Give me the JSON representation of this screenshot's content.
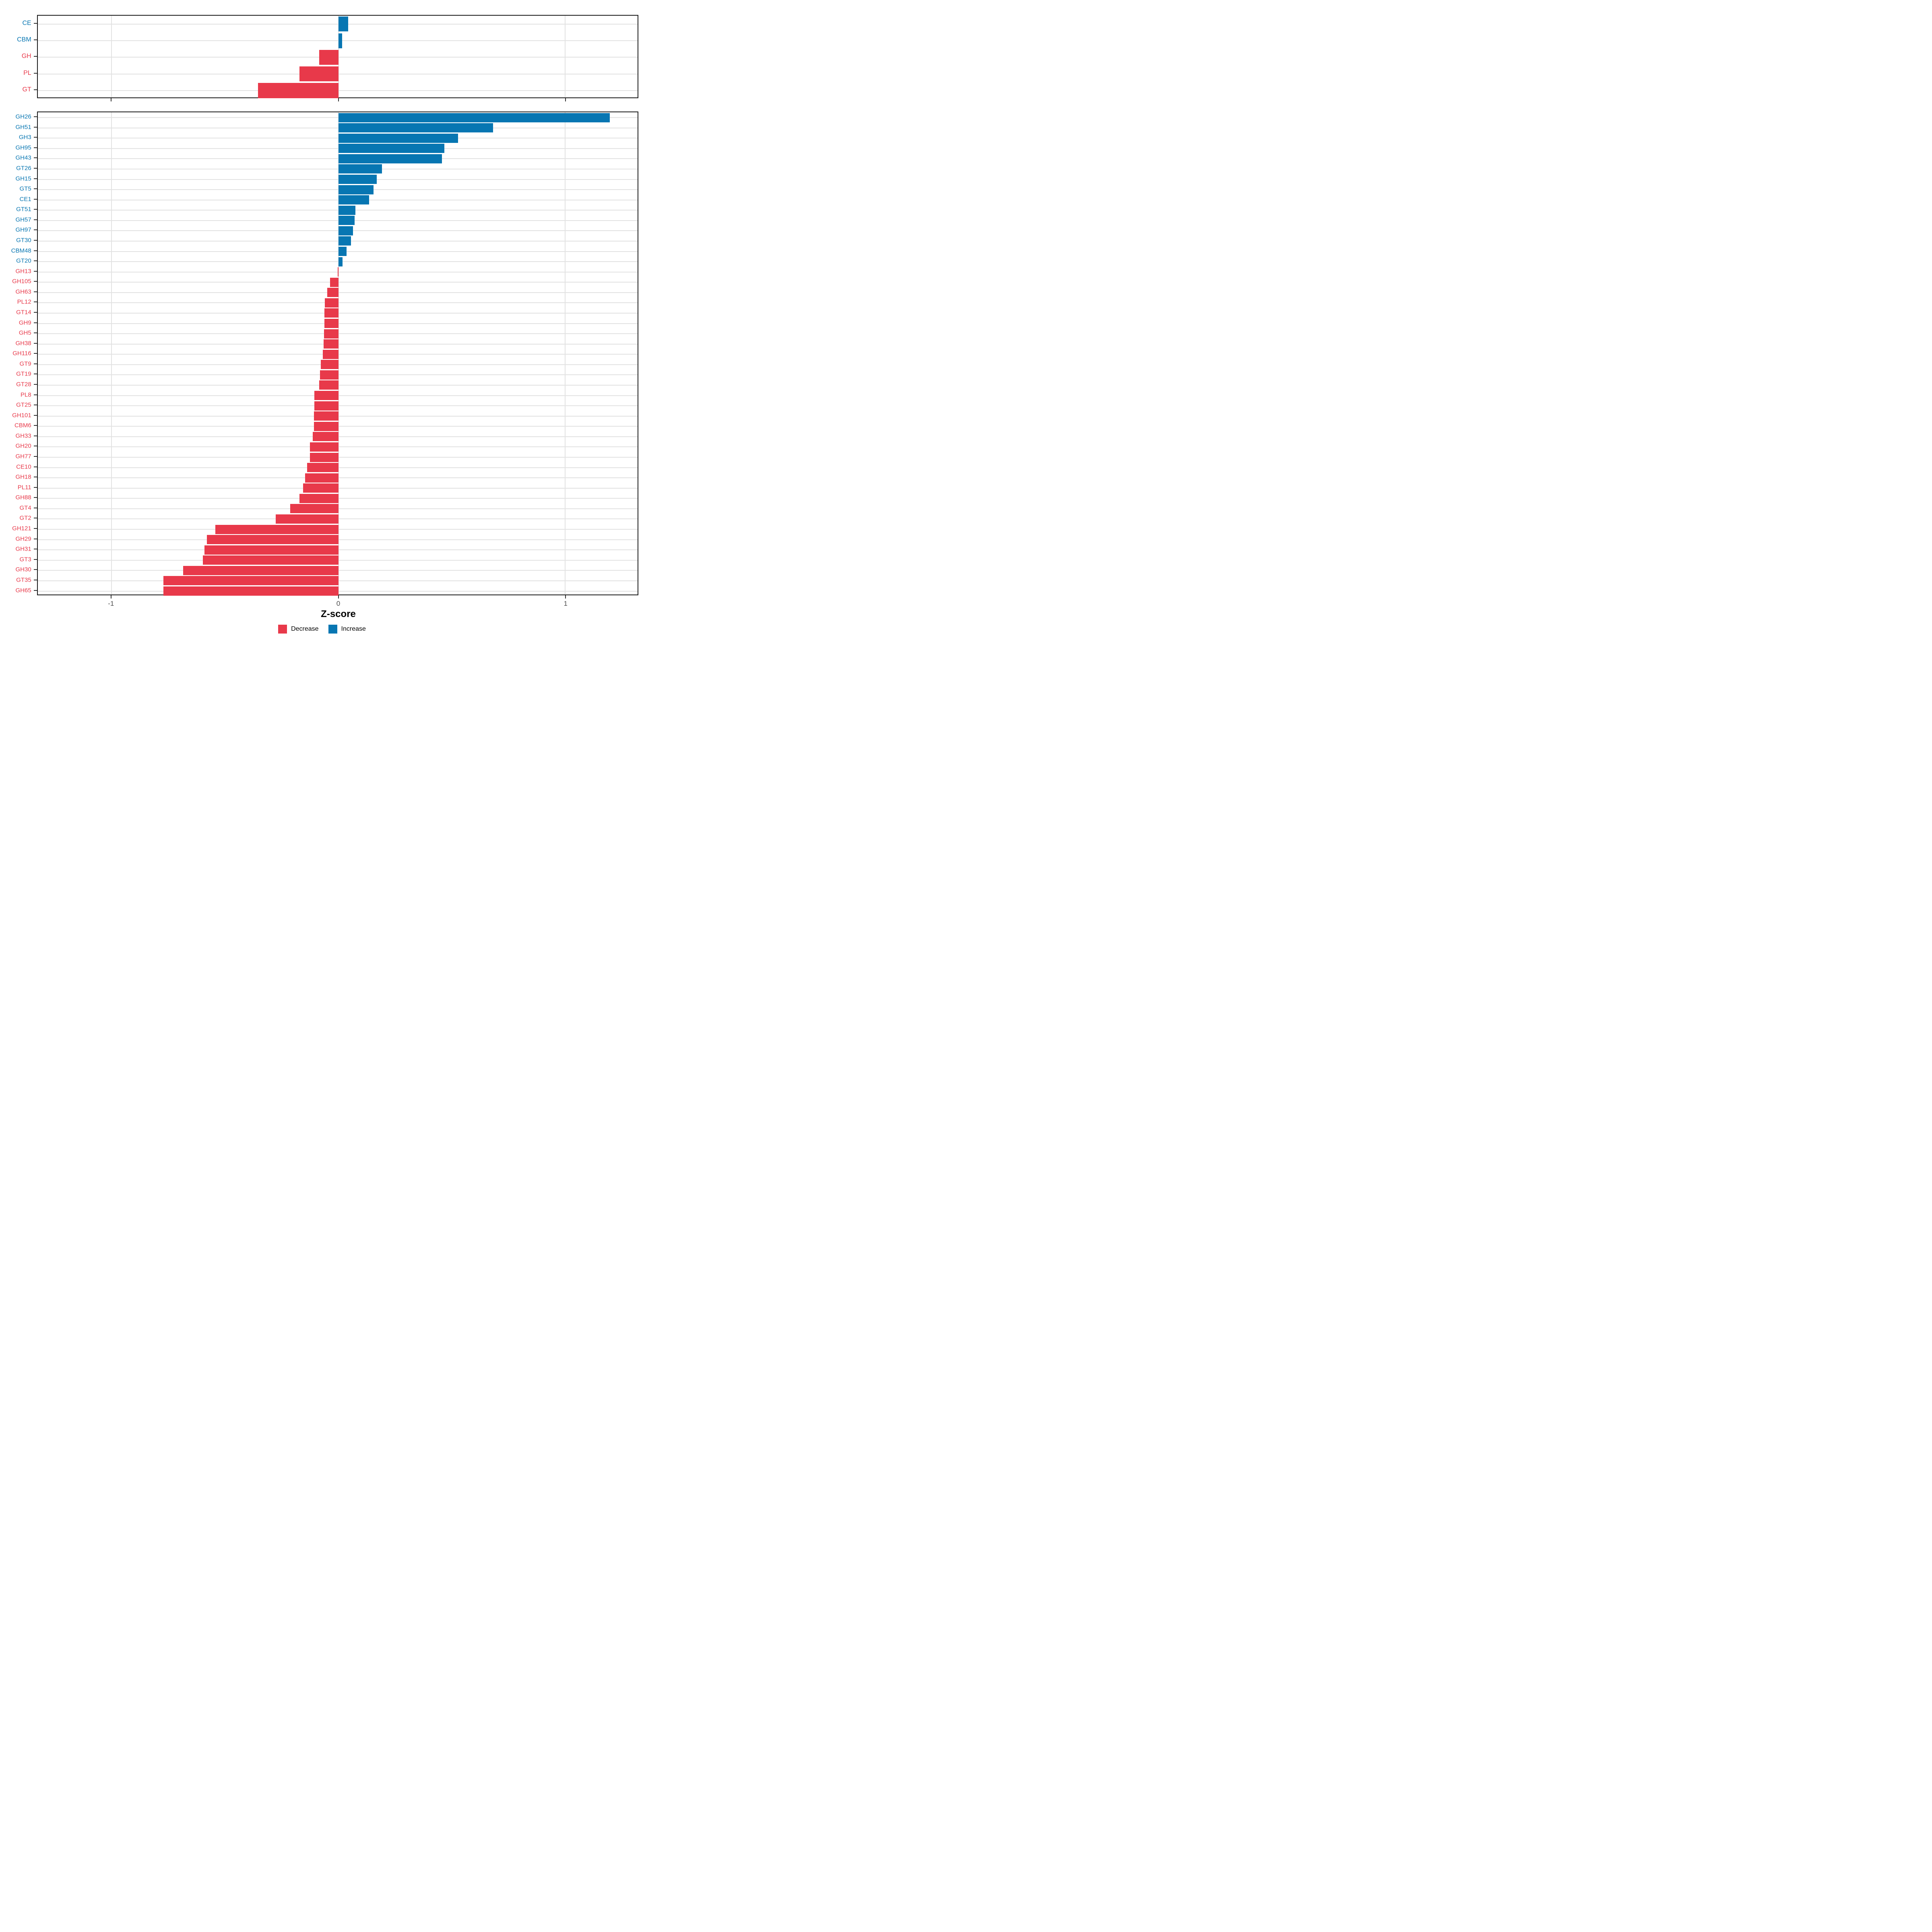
{
  "chart_data": {
    "type": "bar",
    "orientation": "horizontal",
    "title": "",
    "xlabel": "Z-score",
    "ylabel": "",
    "xlim": [
      -1.326,
      1.32
    ],
    "x_ticks": [
      {
        "value": -1,
        "label": "-1"
      },
      {
        "value": 0,
        "label": "0"
      },
      {
        "value": 1,
        "label": "1"
      }
    ],
    "grid": "major-x-and-y",
    "legend_position": "bottom",
    "legend": {
      "items": [
        {
          "label": "Decrease",
          "color": "#e8394a"
        },
        {
          "label": "Increase",
          "color": "#0776b2"
        }
      ]
    },
    "colors": {
      "decrease": "#e8394a",
      "increase": "#0776b2"
    },
    "panels": [
      {
        "name": "enzyme-class-panel",
        "categories": [
          "CE",
          "CBM",
          "GH",
          "PL",
          "GT"
        ],
        "values": [
          0.044,
          0.017,
          -0.085,
          -0.172,
          -0.354
        ]
      },
      {
        "name": "enzyme-family-panel",
        "categories": [
          "GH26",
          "GH51",
          "GH3",
          "GH95",
          "GH43",
          "GT26",
          "GH15",
          "GT5",
          "CE1",
          "GT51",
          "GH57",
          "GH97",
          "GT30",
          "CBM48",
          "GT20",
          "GH13",
          "GH105",
          "GH63",
          "PL12",
          "GT14",
          "GH9",
          "GH5",
          "GH38",
          "GH116",
          "GT9",
          "GT19",
          "GT28",
          "PL8",
          "GT25",
          "GH101",
          "CBM6",
          "GH33",
          "GH20",
          "GH77",
          "CE10",
          "GH18",
          "PL11",
          "GH88",
          "GT4",
          "GT2",
          "GH121",
          "GH29",
          "GH31",
          "GT3",
          "GH30",
          "GT35",
          "GH65"
        ],
        "values": [
          1.198,
          0.683,
          0.529,
          0.467,
          0.457,
          0.193,
          0.169,
          0.156,
          0.135,
          0.076,
          0.071,
          0.065,
          0.056,
          0.036,
          0.018,
          -0.002,
          -0.036,
          -0.049,
          -0.06,
          -0.061,
          -0.062,
          -0.063,
          -0.065,
          -0.069,
          -0.077,
          -0.081,
          -0.085,
          -0.106,
          -0.106,
          -0.107,
          -0.108,
          -0.112,
          -0.125,
          -0.126,
          -0.138,
          -0.146,
          -0.156,
          -0.172,
          -0.213,
          -0.277,
          -0.542,
          -0.58,
          -0.59,
          -0.597,
          -0.685,
          -0.771,
          -0.772
        ]
      }
    ]
  }
}
